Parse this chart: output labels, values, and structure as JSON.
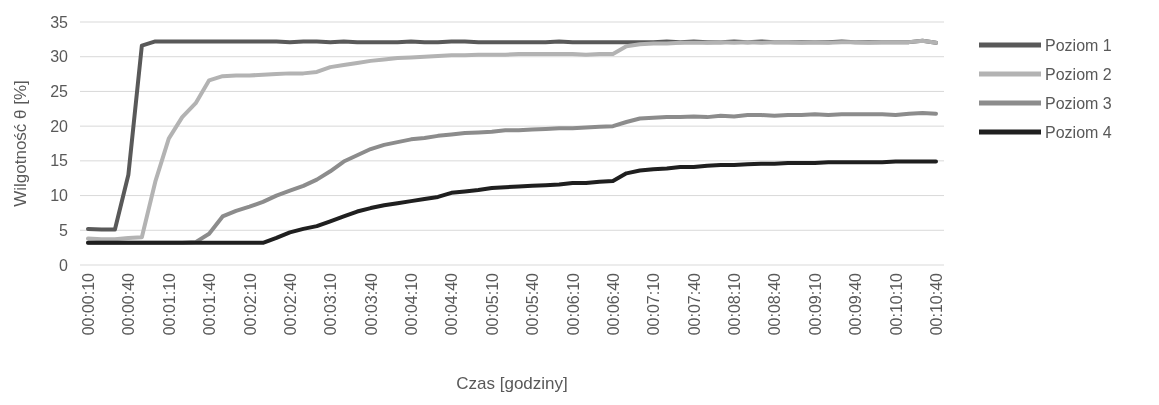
{
  "chart_data": {
    "type": "line",
    "xlabel": "Czas [godziny]",
    "ylabel": "Wilgotność  θ [%]",
    "categories": [
      "00:00:10",
      null,
      null,
      "00:00:40",
      null,
      null,
      "00:01:10",
      null,
      null,
      "00:01:40",
      null,
      null,
      "00:02:10",
      null,
      null,
      "00:02:40",
      null,
      null,
      "00:03:10",
      null,
      null,
      "00:03:40",
      null,
      null,
      "00:04:10",
      null,
      null,
      "00:04:40",
      null,
      null,
      "00:05:10",
      null,
      null,
      "00:05:40",
      null,
      null,
      "00:06:10",
      null,
      null,
      "00:06:40",
      null,
      null,
      "00:07:10",
      null,
      null,
      "00:07:40",
      null,
      null,
      "00:08:10",
      null,
      null,
      "00:08:40",
      null,
      null,
      "00:09:10",
      null,
      null,
      "00:09:40",
      null,
      null,
      "00:10:10",
      null,
      null,
      "00:10:40"
    ],
    "series": [
      {
        "name": "Poziom 1",
        "color": "#595959",
        "values": [
          5.2,
          5.1,
          5.1,
          13,
          31.6,
          32.2,
          32.2,
          32.2,
          32.2,
          32.2,
          32.2,
          32.2,
          32.2,
          32.2,
          32.2,
          32.1,
          32.2,
          32.2,
          32.1,
          32.2,
          32.1,
          32.1,
          32.1,
          32.1,
          32.2,
          32.1,
          32.1,
          32.2,
          32.2,
          32.1,
          32.1,
          32.1,
          32.1,
          32.1,
          32.1,
          32.2,
          32.1,
          32.1,
          32.1,
          32.1,
          32.1,
          32.1,
          32.1,
          32.2,
          32.1,
          32.2,
          32.1,
          32.1,
          32.2,
          32.1,
          32.2,
          32.1,
          32.1,
          32.1,
          32.1,
          32.1,
          32.2,
          32.1,
          32.1,
          32.1,
          32.1,
          32.1,
          32.3,
          32.0
        ]
      },
      {
        "name": "Poziom 2",
        "color": "#b3b3b3",
        "values": [
          3.8,
          3.7,
          3.7,
          3.9,
          4.0,
          12,
          18.2,
          21.3,
          23.3,
          26.6,
          27.2,
          27.3,
          27.3,
          27.4,
          27.5,
          27.6,
          27.6,
          27.8,
          28.5,
          28.8,
          29.1,
          29.4,
          29.6,
          29.8,
          29.9,
          30.0,
          30.1,
          30.2,
          30.2,
          30.3,
          30.3,
          30.3,
          30.4,
          30.4,
          30.4,
          30.4,
          30.4,
          30.3,
          30.4,
          30.4,
          31.5,
          31.8,
          31.9,
          31.9,
          32.0,
          32.0,
          32.0,
          32.1,
          32.0,
          32.1,
          32.0,
          32.1,
          32.1,
          32.0,
          32.1,
          32.0,
          32.1,
          32.1,
          32.0,
          32.1,
          32.1,
          32.1,
          32.3,
          32.0
        ]
      },
      {
        "name": "Poziom 3",
        "color": "#8c8c8c",
        "values": [
          3.2,
          3.2,
          3.2,
          3.2,
          3.2,
          3.2,
          3.2,
          3.2,
          3.3,
          4.5,
          7.0,
          7.8,
          8.4,
          9.1,
          10.0,
          10.7,
          11.4,
          12.3,
          13.5,
          14.9,
          15.8,
          16.7,
          17.3,
          17.7,
          18.1,
          18.3,
          18.6,
          18.8,
          19.0,
          19.1,
          19.2,
          19.4,
          19.4,
          19.5,
          19.6,
          19.7,
          19.7,
          19.8,
          19.9,
          20.0,
          20.6,
          21.1,
          21.2,
          21.3,
          21.3,
          21.4,
          21.3,
          21.5,
          21.4,
          21.6,
          21.6,
          21.5,
          21.6,
          21.6,
          21.7,
          21.6,
          21.7,
          21.7,
          21.7,
          21.7,
          21.6,
          21.8,
          21.9,
          21.8
        ]
      },
      {
        "name": "Poziom 4",
        "color": "#1f1f1f",
        "values": [
          3.2,
          3.2,
          3.2,
          3.2,
          3.2,
          3.2,
          3.2,
          3.2,
          3.2,
          3.2,
          3.2,
          3.2,
          3.2,
          3.2,
          3.9,
          4.7,
          5.2,
          5.6,
          6.3,
          7.0,
          7.7,
          8.2,
          8.6,
          8.9,
          9.2,
          9.5,
          9.8,
          10.4,
          10.6,
          10.8,
          11.1,
          11.2,
          11.3,
          11.4,
          11.5,
          11.6,
          11.8,
          11.8,
          12.0,
          12.1,
          13.2,
          13.6,
          13.8,
          13.9,
          14.1,
          14.1,
          14.3,
          14.4,
          14.4,
          14.5,
          14.6,
          14.6,
          14.7,
          14.7,
          14.7,
          14.8,
          14.8,
          14.8,
          14.8,
          14.8,
          14.9,
          14.9,
          14.9,
          14.9
        ]
      }
    ],
    "ylim": [
      0,
      35
    ],
    "yticks": [
      0,
      5,
      10,
      15,
      20,
      25,
      30,
      35
    ],
    "grid": "y",
    "legend": "right",
    "line_style": "solid",
    "marker": "none"
  }
}
